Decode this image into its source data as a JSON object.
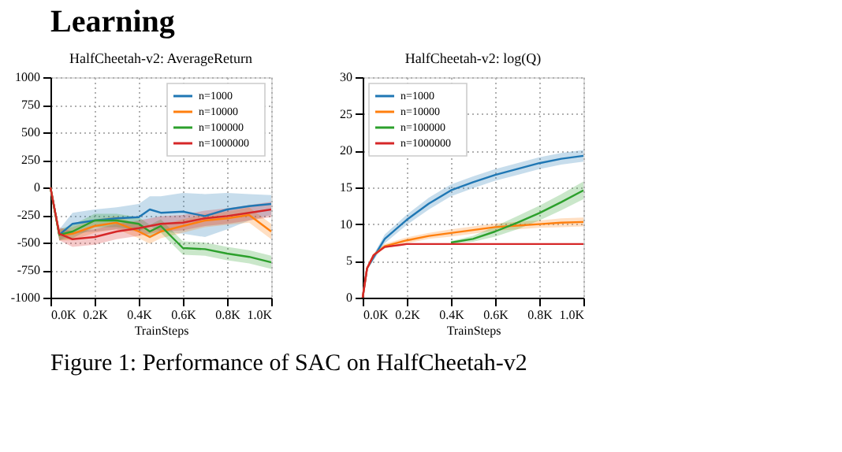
{
  "chart_data": [
    {
      "type": "line",
      "title": "HalfCheetah-v2: AverageReturn",
      "xlabel": "TrainSteps",
      "annotations": [
        "Learning",
        "Figure 1: Performance of SAC on HalfCheetah-v2"
      ],
      "x": [
        0,
        0.04,
        0.1,
        0.2,
        0.3,
        0.4,
        0.45,
        0.5,
        0.6,
        0.7,
        0.8,
        0.9,
        1.0
      ],
      "xlim": [
        0,
        1.0
      ],
      "xticks": [
        {
          "value": 0,
          "label": "0.0K"
        },
        {
          "value": 0.2,
          "label": "0.2K"
        },
        {
          "value": 0.4,
          "label": "0.4K"
        },
        {
          "value": 0.6,
          "label": "0.6K"
        },
        {
          "value": 0.8,
          "label": "0.8K"
        },
        {
          "value": 1.0,
          "label": "1.0K"
        }
      ],
      "ylim": [
        -1000,
        1000
      ],
      "yticks": [
        -1000,
        -750,
        -500,
        -250,
        0,
        250,
        500,
        750,
        1000
      ],
      "grid": true,
      "legend": "top right",
      "series": [
        {
          "name": "n=1000",
          "color": "#1f77b4",
          "values": [
            0,
            -430,
            -330,
            -300,
            -280,
            -270,
            -200,
            -230,
            -220,
            -260,
            -200,
            -170,
            -150
          ],
          "lower": [
            0,
            -480,
            -420,
            -400,
            -380,
            -400,
            -350,
            -400,
            -420,
            -450,
            -380,
            -300,
            -250
          ],
          "upper": [
            0,
            -380,
            -230,
            -200,
            -180,
            -150,
            -80,
            -80,
            -50,
            -60,
            -50,
            -60,
            -70
          ]
        },
        {
          "name": "n=10000",
          "color": "#ff7f0e",
          "values": [
            0,
            -430,
            -420,
            -350,
            -320,
            -400,
            -450,
            -400,
            -350,
            -300,
            -280,
            -250,
            -400
          ],
          "lower": [
            0,
            -480,
            -480,
            -410,
            -380,
            -460,
            -510,
            -460,
            -410,
            -360,
            -340,
            -320,
            -470
          ],
          "upper": [
            0,
            -380,
            -360,
            -290,
            -260,
            -340,
            -390,
            -340,
            -290,
            -240,
            -220,
            -180,
            -330
          ]
        },
        {
          "name": "n=100000",
          "color": "#2ca02c",
          "values": [
            0,
            -430,
            -400,
            -300,
            -300,
            -330,
            -400,
            -350,
            -550,
            -560,
            -600,
            -630,
            -680
          ],
          "lower": [
            0,
            -480,
            -460,
            -360,
            -360,
            -390,
            -460,
            -410,
            -610,
            -620,
            -660,
            -690,
            -740
          ],
          "upper": [
            0,
            -380,
            -340,
            -240,
            -240,
            -270,
            -340,
            -290,
            -490,
            -500,
            -540,
            -570,
            -620
          ]
        },
        {
          "name": "n=1000000",
          "color": "#d62728",
          "values": [
            0,
            -420,
            -470,
            -450,
            -400,
            -370,
            -350,
            -330,
            -320,
            -280,
            -260,
            -230,
            -200
          ],
          "lower": [
            0,
            -480,
            -540,
            -520,
            -470,
            -440,
            -420,
            -400,
            -390,
            -350,
            -330,
            -300,
            -270
          ],
          "upper": [
            0,
            -360,
            -400,
            -380,
            -330,
            -300,
            -280,
            -260,
            -250,
            -210,
            -190,
            -160,
            -130
          ]
        }
      ]
    },
    {
      "type": "line",
      "title": "HalfCheetah-v2: log(Q)",
      "xlabel": "TrainSteps",
      "x": [
        0,
        0.02,
        0.05,
        0.1,
        0.2,
        0.3,
        0.4,
        0.5,
        0.6,
        0.7,
        0.8,
        0.9,
        1.0
      ],
      "xlim": [
        0,
        1.0
      ],
      "xticks": [
        {
          "value": 0,
          "label": "0.0K"
        },
        {
          "value": 0.2,
          "label": "0.2K"
        },
        {
          "value": 0.4,
          "label": "0.4K"
        },
        {
          "value": 0.6,
          "label": "0.6K"
        },
        {
          "value": 0.8,
          "label": "0.8K"
        },
        {
          "value": 1.0,
          "label": "1.0K"
        }
      ],
      "ylim": [
        0,
        30
      ],
      "yticks": [
        0,
        5,
        10,
        15,
        20,
        25,
        30
      ],
      "grid": true,
      "legend": "top left",
      "series": [
        {
          "name": "n=1000",
          "color": "#1f77b4",
          "values": [
            0,
            4,
            5.5,
            8,
            10.6,
            12.8,
            14.6,
            15.7,
            16.7,
            17.5,
            18.3,
            18.9,
            19.3
          ],
          "lower": [
            0,
            3.8,
            5.1,
            7.4,
            9.9,
            12,
            13.8,
            14.9,
            15.9,
            16.7,
            17.5,
            18.1,
            18.5
          ],
          "upper": [
            0,
            4.2,
            5.9,
            8.6,
            11.3,
            13.6,
            15.4,
            16.5,
            17.5,
            18.3,
            19.1,
            19.7,
            20.1
          ]
        },
        {
          "name": "n=10000",
          "color": "#ff7f0e",
          "values": [
            0,
            4,
            5.8,
            7,
            7.8,
            8.4,
            8.8,
            9.2,
            9.6,
            9.8,
            10,
            10.2,
            10.3
          ],
          "lower": [
            0,
            3.9,
            5.6,
            6.7,
            7.4,
            8,
            8.3,
            8.7,
            9.1,
            9.3,
            9.5,
            9.6,
            9.7
          ],
          "upper": [
            0,
            4.1,
            6,
            7.3,
            8.2,
            8.8,
            9.3,
            9.7,
            10.1,
            10.3,
            10.5,
            10.8,
            10.9
          ]
        },
        {
          "name": "n=100000",
          "color": "#2ca02c",
          "values": [
            null,
            null,
            null,
            null,
            null,
            null,
            7.5,
            8,
            9,
            10.2,
            11.5,
            13,
            14.6
          ],
          "lower": [
            null,
            null,
            null,
            null,
            null,
            null,
            7.3,
            7.6,
            8.3,
            9.3,
            10.5,
            11.9,
            13.4
          ],
          "upper": [
            null,
            null,
            null,
            null,
            null,
            null,
            7.7,
            8.4,
            9.7,
            11.1,
            12.5,
            14.1,
            15.8
          ]
        },
        {
          "name": "n=1000000",
          "color": "#d62728",
          "values": [
            0,
            4,
            5.8,
            6.9,
            7.3,
            7.3,
            7.3,
            7.3,
            7.3,
            7.3,
            7.3,
            7.3,
            7.3
          ],
          "lower": [
            0,
            3.9,
            5.7,
            6.8,
            7.2,
            7.2,
            7.2,
            7.2,
            7.2,
            7.2,
            7.2,
            7.2,
            7.2
          ],
          "upper": [
            0,
            4.1,
            5.9,
            7,
            7.4,
            7.4,
            7.4,
            7.4,
            7.4,
            7.4,
            7.4,
            7.4,
            7.4
          ]
        }
      ]
    }
  ]
}
